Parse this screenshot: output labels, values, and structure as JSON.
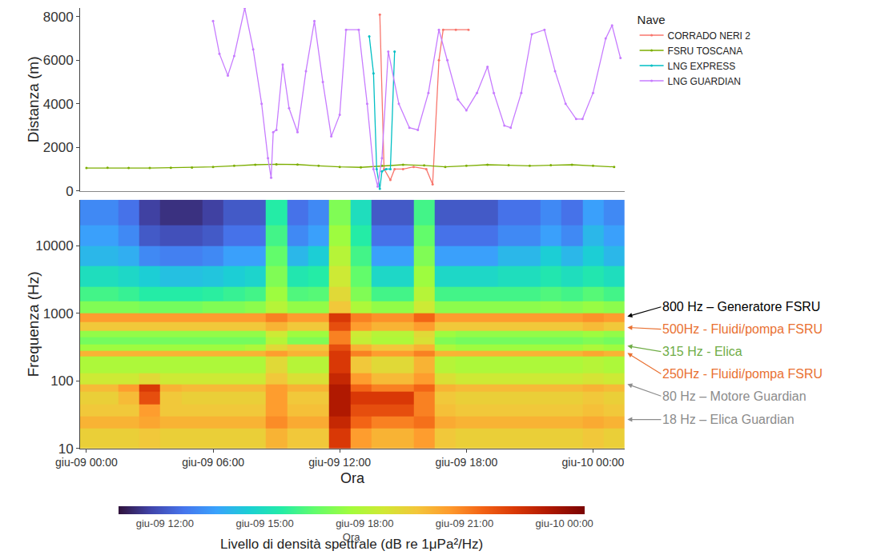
{
  "chart_data": [
    {
      "type": "line",
      "y_label": "Distanza (m)",
      "legend_title": "Nave",
      "legend": "right",
      "marker": "circle",
      "line_style": "solid",
      "grid": false,
      "tick_labels": "y",
      "xlim": [
        -0.3,
        25.5
      ],
      "ylim": [
        0,
        8400
      ],
      "yticks": [
        0,
        2000,
        4000,
        6000,
        8000
      ],
      "series": [
        {
          "name": "CORRADO NERI 2",
          "color": "#f8766d",
          "x": [
            13.9,
            14.1,
            14.4,
            14.6,
            15.0,
            15.5,
            16.1,
            16.4,
            16.7,
            16.9,
            17.5,
            18.1
          ],
          "values": [
            8100,
            1000,
            500,
            1000,
            1000,
            1100,
            1000,
            300,
            6000,
            7400,
            7400,
            7400
          ]
        },
        {
          "name": "FSRU TOSCANA",
          "color": "#7cae00",
          "x": [
            0,
            1,
            2,
            3,
            4,
            5,
            6,
            7,
            8,
            9,
            10,
            11,
            12,
            13,
            14,
            15,
            16,
            17,
            18,
            19,
            20,
            21,
            22,
            23,
            24,
            25
          ],
          "values": [
            1050,
            1060,
            1050,
            1050,
            1060,
            1070,
            1100,
            1150,
            1200,
            1220,
            1210,
            1150,
            1100,
            1080,
            1150,
            1200,
            1170,
            1100,
            1150,
            1200,
            1180,
            1150,
            1180,
            1200,
            1150,
            1100
          ]
        },
        {
          "name": "LNG EXPRESS",
          "color": "#00bfc4",
          "x": [
            13.4,
            13.6,
            13.75,
            13.9,
            14.0,
            14.2,
            14.4,
            14.6
          ],
          "values": [
            7100,
            5400,
            1000,
            100,
            900,
            1000,
            1000,
            6400
          ]
        },
        {
          "name": "LNG GUARDIAN",
          "color": "#c77cff",
          "x": [
            6.0,
            6.3,
            6.7,
            7.0,
            7.5,
            7.9,
            8.3,
            8.6,
            8.75,
            8.85,
            9.0,
            9.3,
            9.6,
            10.0,
            10.4,
            10.8,
            11.2,
            11.6,
            12.0,
            12.3,
            12.9,
            13.3,
            13.6,
            13.8,
            14.0,
            14.3,
            14.8,
            15.3,
            15.7,
            16.2,
            16.7,
            17.1,
            17.6,
            18.0,
            18.5,
            19.0,
            19.3,
            19.8,
            20.1,
            20.6,
            21.1,
            21.7,
            22.2,
            22.7,
            23.2,
            23.5,
            24.0,
            24.6,
            24.9,
            25.3
          ],
          "values": [
            7800,
            6300,
            5300,
            6200,
            8400,
            6500,
            4000,
            1500,
            600,
            2700,
            2800,
            5800,
            3800,
            2700,
            5500,
            7800,
            5000,
            2500,
            3500,
            7400,
            7400,
            4000,
            1000,
            200,
            1500,
            6400,
            4000,
            2900,
            2800,
            4500,
            7400,
            6000,
            4200,
            3700,
            4500,
            5700,
            4500,
            3000,
            2900,
            4500,
            7200,
            7400,
            5500,
            4000,
            3300,
            3300,
            4500,
            7000,
            7600,
            6100
          ]
        }
      ]
    },
    {
      "type": "heatmap",
      "x_label": "Ora",
      "y_label": "Frequenza (Hz)",
      "log": "y",
      "grid": false,
      "xlim": [
        -0.3,
        25.5
      ],
      "xticks": [
        {
          "value": 0,
          "label": "giu-09 00:00"
        },
        {
          "value": 6,
          "label": "giu-09 06:00"
        },
        {
          "value": 12,
          "label": "giu-09 12:00"
        },
        {
          "value": 18,
          "label": "giu-09 18:00"
        },
        {
          "value": 24,
          "label": "giu-10 00:00"
        }
      ],
      "ylim": [
        10,
        48000
      ],
      "yticks": [
        10,
        100,
        1000,
        10000
      ],
      "x": [
        0,
        1,
        2,
        3,
        4,
        5,
        6,
        7,
        8,
        9,
        10,
        11,
        12,
        13,
        14,
        15,
        16,
        17,
        18,
        19,
        20,
        21,
        22,
        23,
        24,
        25
      ],
      "frequency_bins": [
        10,
        20,
        30,
        45,
        70,
        90,
        130,
        230,
        280,
        350,
        450,
        550,
        750,
        1000,
        1500,
        2500,
        5000,
        10000,
        20000,
        48000
      ],
      "cells": [
        [
          19.3,
          19.3,
          19.3,
          19.5,
          19.3,
          19.3,
          19.3,
          19.3,
          19.3,
          20,
          19.5,
          19.5,
          22.5,
          20.5,
          20,
          20,
          20.5,
          19.5,
          19.3,
          19.3,
          19.3,
          19.3,
          19.3,
          19.3,
          19.5,
          19.3
        ],
        [
          20,
          20,
          20,
          20.3,
          20,
          20,
          20,
          20,
          20,
          20.8,
          20.2,
          20.2,
          23,
          21.5,
          21,
          21,
          21.3,
          20.2,
          20,
          20,
          20,
          20,
          20,
          20,
          20.2,
          20
        ],
        [
          19.5,
          19.5,
          19.5,
          20.5,
          19.5,
          19.5,
          19.5,
          19.5,
          19.5,
          20.5,
          19.7,
          19.7,
          23.5,
          22,
          22,
          22,
          21,
          19.7,
          19.5,
          19.5,
          19.5,
          19.5,
          19.5,
          19.5,
          19.7,
          19.5
        ],
        [
          19.3,
          19.3,
          19.8,
          22,
          19.5,
          19.3,
          19.3,
          19.3,
          19.3,
          20.5,
          19.5,
          19.5,
          23.5,
          22.5,
          22.5,
          22.5,
          21,
          19.5,
          19.3,
          19.3,
          19.3,
          19.3,
          19.3,
          19.3,
          19.5,
          19.3
        ],
        [
          19.8,
          19.8,
          20.5,
          22.5,
          20,
          19.8,
          19.8,
          19.8,
          19.8,
          20.5,
          20,
          20,
          23.5,
          21.5,
          21,
          21,
          21.5,
          20,
          19.8,
          19.8,
          19.8,
          19.8,
          19.8,
          19.8,
          20,
          19.8
        ],
        [
          18.5,
          18.5,
          18.5,
          19,
          18.5,
          18.5,
          18.5,
          18.5,
          18.5,
          19.5,
          18.8,
          18.8,
          23,
          20.5,
          19.8,
          19.8,
          20.5,
          18.8,
          18.5,
          18.5,
          18.5,
          18.5,
          18.5,
          18.5,
          18.7,
          18.5
        ],
        [
          17.8,
          17.8,
          17.8,
          17.8,
          17.8,
          17.8,
          17.8,
          17.8,
          17.8,
          19,
          18,
          18,
          22.5,
          19.5,
          19,
          19,
          20,
          18,
          17.8,
          17.8,
          17.8,
          17.8,
          17.8,
          17.8,
          18,
          17.8
        ],
        [
          20,
          20,
          20,
          20,
          20,
          20,
          20,
          20,
          20,
          20.5,
          20,
          20,
          22.5,
          21,
          20.5,
          20.5,
          21,
          20,
          20,
          20,
          20,
          20,
          20,
          20,
          20.3,
          20
        ],
        [
          17.5,
          17.5,
          17.5,
          17.5,
          17.5,
          17.5,
          17.5,
          17.5,
          17.8,
          19,
          19.5,
          19.5,
          22,
          20,
          19.5,
          19.5,
          20,
          17.8,
          17.5,
          17.5,
          17.5,
          17.5,
          17.5,
          17.5,
          17.8,
          17.5
        ],
        [
          16.8,
          16.8,
          16.8,
          16.8,
          16.8,
          16.8,
          16.8,
          16.8,
          16.8,
          18,
          17,
          17,
          21,
          18.3,
          17.8,
          17.8,
          18.8,
          17,
          16.8,
          16.8,
          16.8,
          16.8,
          16.8,
          16.8,
          17,
          16.8
        ],
        [
          17.3,
          17.3,
          17.3,
          17.3,
          17.3,
          17.3,
          17.3,
          17.3,
          17.3,
          18.5,
          17.5,
          17.5,
          21,
          18.5,
          18,
          18,
          19,
          17.5,
          17.3,
          17.3,
          17.3,
          17.3,
          17.3,
          17.3,
          17.5,
          17.3
        ],
        [
          19.5,
          19.5,
          19.5,
          19.5,
          19.5,
          19.5,
          19.5,
          19.5,
          19.5,
          20,
          19.5,
          19.5,
          22,
          20.5,
          20,
          20,
          20.5,
          19.5,
          19.5,
          19.5,
          19.5,
          19.5,
          19.5,
          19.5,
          19.8,
          19.5
        ],
        [
          20.5,
          20.5,
          20.5,
          20.5,
          20.5,
          20.5,
          20.5,
          20.5,
          20.5,
          21,
          20.5,
          20.5,
          22.5,
          21,
          20.7,
          20.7,
          21.5,
          20.5,
          20.5,
          20.5,
          20.5,
          20.5,
          20.5,
          20.5,
          20.7,
          20.5
        ],
        [
          17,
          17,
          17,
          16.8,
          16.8,
          16.8,
          17,
          17,
          17.2,
          18,
          17.3,
          17.3,
          19.5,
          17.8,
          17.3,
          17.3,
          18.5,
          17.2,
          17.2,
          17.2,
          17.2,
          17.2,
          17.3,
          17.2,
          17.4,
          17.2
        ],
        [
          16,
          16,
          15.8,
          15.5,
          15.5,
          15.5,
          15.6,
          15.8,
          16,
          17.5,
          16.2,
          16.3,
          19,
          17,
          16,
          16,
          18,
          16,
          16,
          16,
          16,
          16,
          16.2,
          16,
          16.3,
          16
        ],
        [
          15,
          15,
          14.8,
          14.5,
          14.2,
          14.2,
          14.3,
          14.5,
          14.7,
          17,
          15.3,
          15.5,
          18.5,
          16.5,
          14.8,
          14.8,
          17.5,
          14.8,
          14.8,
          14.8,
          15,
          15,
          15.3,
          15,
          15.3,
          15
        ],
        [
          14,
          14,
          13.8,
          13,
          12.8,
          12.8,
          13,
          13.5,
          13.5,
          16.5,
          14,
          14.5,
          18,
          16,
          13.5,
          13.5,
          17,
          13.5,
          13.5,
          13.5,
          14,
          14,
          14.5,
          14,
          14.5,
          14
        ],
        [
          13.5,
          13.5,
          13,
          12,
          11.8,
          11.8,
          12,
          12.5,
          12.5,
          16,
          13,
          13.5,
          17.5,
          15.5,
          12.5,
          12.5,
          16.5,
          12.5,
          12.5,
          12.5,
          13,
          13,
          13.5,
          13,
          14,
          13.5
        ],
        [
          13,
          13,
          12.5,
          11.5,
          11.2,
          11.2,
          11.5,
          12,
          12,
          15.5,
          12.5,
          13,
          17,
          15,
          12,
          12,
          16,
          12,
          12,
          12,
          12.5,
          12.5,
          13,
          12.5,
          13.5,
          13
        ]
      ],
      "colorbar_title": "Ora",
      "colorbar_label": "Livello di densità spettrale (dB re 1μPa²/Hz)",
      "colorbar_range": [
        10.6,
        24.6
      ],
      "colorbar_ticks": [
        {
          "value": 12,
          "label": "giu-09 12:00"
        },
        {
          "value": 15,
          "label": "giu-09 15:00"
        },
        {
          "value": 18,
          "label": "giu-09 18:00"
        },
        {
          "value": 21,
          "label": "giu-09 21:00"
        },
        {
          "value": 24,
          "label": "giu-10 00:00"
        }
      ],
      "annotations": [
        {
          "text": "800 Hz – Generatore FSRU",
          "y": 900,
          "color": "#000000"
        },
        {
          "text": "500Hz - Fluidi/pompa FSRU",
          "y": 620,
          "color": "#e97132"
        },
        {
          "text": "315 Hz - Elica",
          "y": 330,
          "color": "#70ad47"
        },
        {
          "text": "250Hz - Fluidi/pompa FSRU",
          "y": 260,
          "color": "#e97132"
        },
        {
          "text": "80 Hz – Motore Guardian",
          "y": 90,
          "color": "#8c8c8c"
        },
        {
          "text": "18 Hz – Elica Guardian",
          "y": 27,
          "color": "#8c8c8c"
        }
      ]
    }
  ]
}
